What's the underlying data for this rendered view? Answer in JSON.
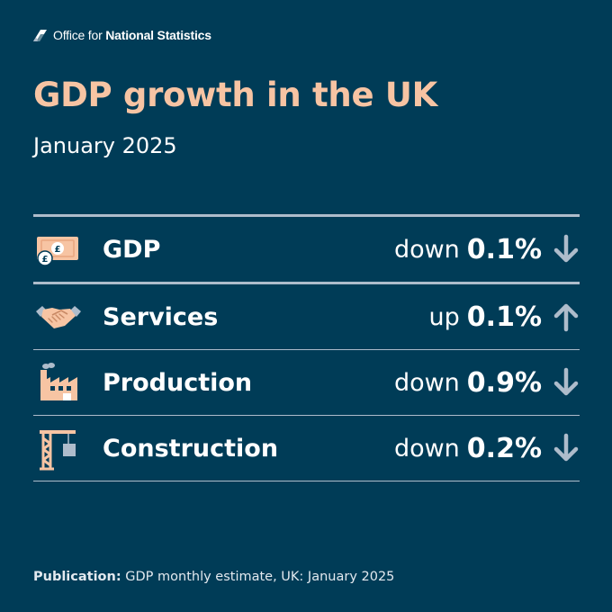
{
  "header": {
    "org_prefix": "Office for ",
    "org_bold": "National Statistics",
    "title": "GDP growth in the UK",
    "subtitle": "January 2025"
  },
  "colors": {
    "background": "#003c57",
    "title": "#f7c4a3",
    "divider": "#aebccb",
    "arrow": "#aebccb"
  },
  "rows": [
    {
      "label": "GDP",
      "direction": "down",
      "value": "0.1%",
      "icon": "pound-banknote-icon",
      "arrow": "arrow-down-icon"
    },
    {
      "label": "Services",
      "direction": "up",
      "value": "0.1%",
      "icon": "handshake-icon",
      "arrow": "arrow-up-icon"
    },
    {
      "label": "Production",
      "direction": "down",
      "value": "0.9%",
      "icon": "factory-icon",
      "arrow": "arrow-down-icon"
    },
    {
      "label": "Construction",
      "direction": "down",
      "value": "0.2%",
      "icon": "construction-crane-icon",
      "arrow": "arrow-down-icon"
    }
  ],
  "footer": {
    "label": "Publication:",
    "text": " GDP monthly estimate, UK: January 2025"
  }
}
